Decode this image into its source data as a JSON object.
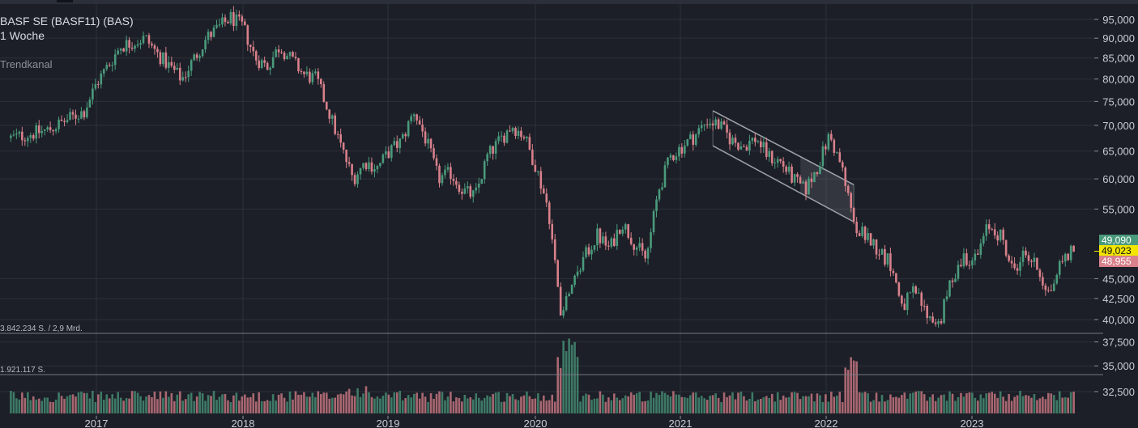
{
  "legend": {
    "title": "BASF SE (BASF11) (BAS)",
    "interval": "1 Woche",
    "indicator": "Trendkanal"
  },
  "volume_labels": {
    "upper": "3.842.234 S. / 2,9 Mrd.",
    "lower": "1.921.117 S."
  },
  "price_tags": {
    "high": "49,090",
    "last": "49,023",
    "low": "48,955"
  },
  "colors": {
    "background": "#1c1f27",
    "grid": "#2c303a",
    "up": "#4a9a7c",
    "down": "#d8808b",
    "last_price": "#f2e600",
    "channel": "#9ea2aa",
    "axis_text": "#c9ccd3"
  },
  "chart_data": {
    "type": "candlestick",
    "y_scale": "log",
    "ylim": [
      31000,
      98000
    ],
    "x_ticks": [
      "2017",
      "2018",
      "2019",
      "2020",
      "2021",
      "2022",
      "2023"
    ],
    "y_ticks": [
      {
        "value": 95000,
        "label": "95,000"
      },
      {
        "value": 90000,
        "label": "90,000"
      },
      {
        "value": 85000,
        "label": "85,000"
      },
      {
        "value": 80000,
        "label": "80,000"
      },
      {
        "value": 75000,
        "label": "75,000"
      },
      {
        "value": 70000,
        "label": "70,000"
      },
      {
        "value": 65000,
        "label": "65,000"
      },
      {
        "value": 60000,
        "label": "60,000"
      },
      {
        "value": 55000,
        "label": "55,000"
      },
      {
        "value": 45000,
        "label": "45,000"
      },
      {
        "value": 42500,
        "label": "42,500"
      },
      {
        "value": 40000,
        "label": "40,000"
      },
      {
        "value": 37500,
        "label": "37,500"
      },
      {
        "value": 35000,
        "label": "35,000"
      },
      {
        "value": 32500,
        "label": "32,500"
      }
    ],
    "close_path": [
      [
        "2016-06",
        67500
      ],
      [
        "2016-09",
        69000
      ],
      [
        "2016-12",
        73000
      ],
      [
        "2017-01",
        79000
      ],
      [
        "2017-03",
        88000
      ],
      [
        "2017-05",
        90000
      ],
      [
        "2017-06",
        86000
      ],
      [
        "2017-08",
        80000
      ],
      [
        "2017-10",
        90000
      ],
      [
        "2017-12",
        95500
      ],
      [
        "2018-01",
        93000
      ],
      [
        "2018-02",
        85000
      ],
      [
        "2018-03",
        83000
      ],
      [
        "2018-04",
        88000
      ],
      [
        "2018-06",
        81000
      ],
      [
        "2018-07",
        80000
      ],
      [
        "2018-08",
        73000
      ],
      [
        "2018-09",
        66000
      ],
      [
        "2018-10",
        60000
      ],
      [
        "2018-11",
        63000
      ],
      [
        "2018-12",
        62000
      ],
      [
        "2019-01",
        65000
      ],
      [
        "2019-02",
        67000
      ],
      [
        "2019-03",
        73000
      ],
      [
        "2019-04",
        67000
      ],
      [
        "2019-05",
        60000
      ],
      [
        "2019-06",
        61000
      ],
      [
        "2019-07",
        58000
      ],
      [
        "2019-08",
        57000
      ],
      [
        "2019-09",
        64000
      ],
      [
        "2019-11",
        70000
      ],
      [
        "2019-12",
        68000
      ],
      [
        "2020-01",
        62000
      ],
      [
        "2020-02",
        55000
      ],
      [
        "2020-03",
        41000
      ],
      [
        "2020-04",
        45000
      ],
      [
        "2020-05",
        48000
      ],
      [
        "2020-06",
        51000
      ],
      [
        "2020-07",
        49000
      ],
      [
        "2020-08",
        53000
      ],
      [
        "2020-09",
        50000
      ],
      [
        "2020-10",
        47500
      ],
      [
        "2020-11",
        58000
      ],
      [
        "2020-12",
        64000
      ],
      [
        "2021-01",
        66000
      ],
      [
        "2021-02",
        68000
      ],
      [
        "2021-03",
        71000
      ],
      [
        "2021-04",
        70000
      ],
      [
        "2021-05",
        67000
      ],
      [
        "2021-06",
        66000
      ],
      [
        "2021-07",
        67500
      ],
      [
        "2021-08",
        64000
      ],
      [
        "2021-09",
        63000
      ],
      [
        "2021-10",
        60000
      ],
      [
        "2021-11",
        58000
      ],
      [
        "2021-12",
        62000
      ],
      [
        "2022-01",
        68000
      ],
      [
        "2022-02",
        62000
      ],
      [
        "2022-03",
        52000
      ],
      [
        "2022-04",
        51000
      ],
      [
        "2022-05",
        49000
      ],
      [
        "2022-06",
        47000
      ],
      [
        "2022-07",
        41500
      ],
      [
        "2022-08",
        43500
      ],
      [
        "2022-09",
        40500
      ],
      [
        "2022-10",
        39500
      ],
      [
        "2022-11",
        45000
      ],
      [
        "2022-12",
        48000
      ],
      [
        "2023-01",
        47500
      ],
      [
        "2023-02",
        52500
      ],
      [
        "2023-03",
        51000
      ],
      [
        "2023-04",
        46000
      ],
      [
        "2023-05",
        48500
      ],
      [
        "2023-06",
        46500
      ],
      [
        "2023-07",
        43000
      ],
      [
        "2023-08",
        47500
      ],
      [
        "2023-09",
        49023
      ]
    ],
    "trend_channel": {
      "upper": [
        [
          "2021-03-15",
          73000
        ],
        [
          "2022-03-01",
          59000
        ]
      ],
      "lower": [
        [
          "2021-03-15",
          66000
        ],
        [
          "2022-03-01",
          53000
        ]
      ]
    },
    "volume_levels": {
      "upper": 3842234,
      "lower": 1921117
    }
  }
}
